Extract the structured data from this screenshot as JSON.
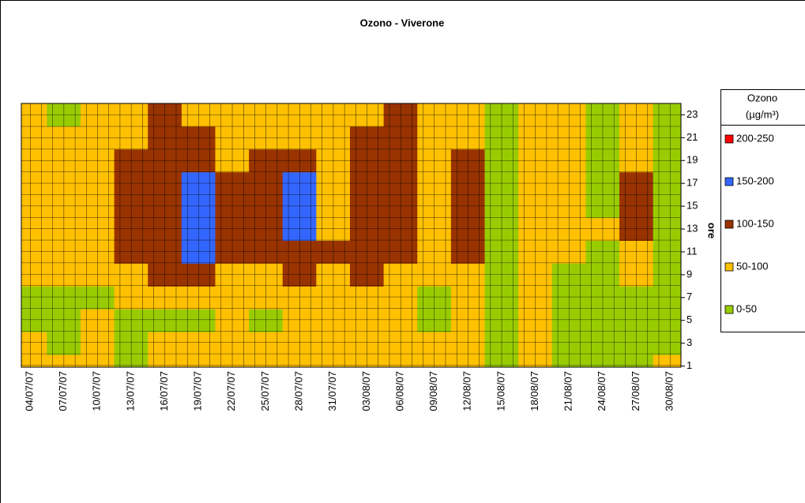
{
  "chart_data": {
    "type": "contour",
    "title": "Ozono - Viverone",
    "y_label": "ore",
    "legend_title": [
      "Ozono",
      "(µg/m³)"
    ],
    "categories": [
      "04/07/07",
      "07/07/07",
      "10/07/07",
      "13/07/07",
      "16/07/07",
      "19/07/07",
      "22/07/07",
      "25/07/07",
      "28/07/07",
      "31/07/07",
      "03/08/07",
      "06/08/07",
      "09/08/07",
      "12/08/07",
      "15/08/07",
      "18/08/07",
      "21/08/07",
      "24/08/07",
      "27/08/07",
      "30/08/07"
    ],
    "hours": [
      1,
      3,
      5,
      7,
      9,
      11,
      13,
      15,
      17,
      19,
      21,
      23
    ],
    "ylim": [
      0.9,
      24
    ],
    "yticks": [
      1,
      3,
      5,
      7,
      9,
      11,
      13,
      15,
      17,
      19,
      21,
      23
    ],
    "bands": [
      {
        "label": "200-250",
        "min": 200,
        "max": 250,
        "color": "#ff0000"
      },
      {
        "label": "150-200",
        "min": 150,
        "max": 200,
        "color": "#3366ff"
      },
      {
        "label": "100-150",
        "min": 100,
        "max": 150,
        "color": "#993300"
      },
      {
        "label": "50-100",
        "min": 50,
        "max": 100,
        "color": "#ffc000"
      },
      {
        "label": "0-50",
        "min": 0,
        "max": 50,
        "color": "#99cc00"
      }
    ],
    "z": [
      [
        60,
        55,
        40,
        40,
        60,
        70,
        80,
        80,
        80,
        80,
        80,
        80
      ],
      [
        60,
        40,
        40,
        40,
        60,
        60,
        70,
        70,
        70,
        70,
        70,
        40
      ],
      [
        60,
        60,
        60,
        40,
        70,
        80,
        80,
        80,
        80,
        80,
        80,
        70
      ],
      [
        40,
        40,
        40,
        60,
        80,
        110,
        110,
        120,
        110,
        110,
        90,
        80
      ],
      [
        60,
        60,
        40,
        60,
        110,
        110,
        140,
        130,
        130,
        130,
        120,
        110
      ],
      [
        60,
        60,
        40,
        70,
        110,
        160,
        160,
        170,
        160,
        130,
        110,
        90
      ],
      [
        70,
        60,
        60,
        70,
        80,
        110,
        110,
        110,
        110,
        90,
        80,
        80
      ],
      [
        60,
        60,
        40,
        60,
        80,
        110,
        120,
        110,
        110,
        110,
        80,
        70
      ],
      [
        60,
        60,
        60,
        80,
        110,
        130,
        170,
        170,
        160,
        110,
        90,
        80
      ],
      [
        70,
        70,
        70,
        80,
        80,
        100,
        90,
        80,
        80,
        80,
        80,
        80
      ],
      [
        70,
        70,
        70,
        70,
        100,
        120,
        120,
        120,
        110,
        110,
        100,
        80
      ],
      [
        70,
        90,
        90,
        70,
        90,
        120,
        120,
        120,
        120,
        120,
        110,
        110
      ],
      [
        60,
        60,
        40,
        40,
        70,
        80,
        80,
        80,
        80,
        80,
        80,
        70
      ],
      [
        60,
        70,
        70,
        70,
        80,
        110,
        120,
        120,
        120,
        110,
        80,
        80
      ],
      [
        40,
        40,
        40,
        40,
        40,
        40,
        40,
        40,
        40,
        40,
        40,
        40
      ],
      [
        60,
        60,
        70,
        70,
        70,
        70,
        70,
        70,
        70,
        70,
        70,
        70
      ],
      [
        40,
        40,
        40,
        40,
        40,
        60,
        70,
        70,
        70,
        70,
        70,
        70
      ],
      [
        40,
        40,
        40,
        40,
        40,
        40,
        60,
        40,
        40,
        40,
        40,
        40
      ],
      [
        40,
        40,
        40,
        40,
        60,
        70,
        110,
        110,
        110,
        70,
        60,
        60
      ],
      [
        60,
        40,
        40,
        40,
        40,
        40,
        40,
        40,
        40,
        40,
        40,
        40
      ]
    ]
  }
}
